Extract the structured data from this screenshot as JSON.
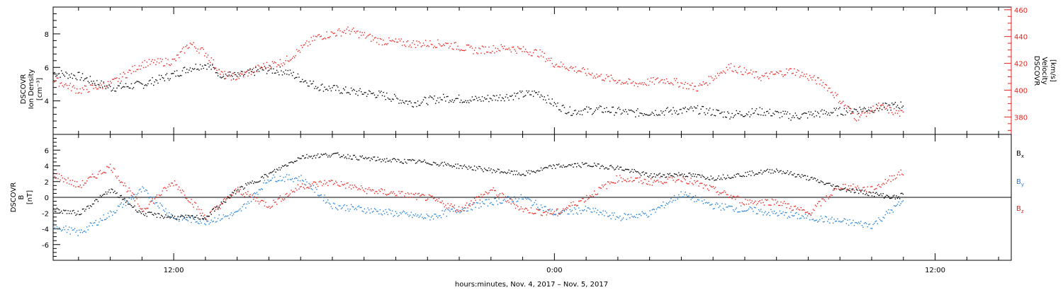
{
  "footer": {
    "time_label": "hours:minutes, Nov.  4, 2017 – Nov.  5, 2017"
  },
  "time_ticks": [
    "12:00",
    "0:00",
    "12:00"
  ],
  "chart_data": [
    {
      "type": "scatter",
      "panel": "top",
      "x_unit": "hours since Nov. 4, 2017 00:00",
      "x_range": [
        8.2,
        38.4
      ],
      "left_axis": {
        "label_line1": "DSCOVR",
        "label_line2": "Ion Density",
        "label_line3": "[cm⁻³]",
        "ylim": [
          2.0,
          9.6
        ],
        "ticks": [
          4,
          6,
          8
        ],
        "color": "#000000"
      },
      "right_axis": {
        "label_line1": "DSCOVR",
        "label_line2": "Velocity",
        "label_line3": "[km/s]",
        "ylim": [
          367,
          462
        ],
        "ticks": [
          380,
          400,
          420,
          440,
          460
        ],
        "color": "#e8231d"
      },
      "series": [
        {
          "name": "Ion Density",
          "axis": "left",
          "color": "#000000",
          "x": [
            8.2,
            9.0,
            10.0,
            11.0,
            12.0,
            12.5,
            13.0,
            13.5,
            14.0,
            14.8,
            15.5,
            16.5,
            17.5,
            18.5,
            19.5,
            20.5,
            21.5,
            22.5,
            23.5,
            24.0,
            24.5,
            25.5,
            26.5,
            27.5,
            28.5,
            29.5,
            30.5,
            31.5,
            32.5,
            33.5,
            34.2,
            35.0
          ],
          "y": [
            5.7,
            5.5,
            4.8,
            5.0,
            5.6,
            6.0,
            6.2,
            5.6,
            5.5,
            5.9,
            5.8,
            4.9,
            4.6,
            4.4,
            3.9,
            4.2,
            4.1,
            4.3,
            4.5,
            3.8,
            3.4,
            3.5,
            3.3,
            3.4,
            3.5,
            3.2,
            3.4,
            3.1,
            3.3,
            3.5,
            3.6,
            3.8
          ]
        },
        {
          "name": "Velocity",
          "axis": "right",
          "color": "#e8231d",
          "x": [
            8.2,
            9.0,
            10.0,
            11.0,
            12.0,
            12.5,
            13.0,
            13.5,
            14.0,
            14.8,
            15.5,
            16.5,
            17.5,
            18.5,
            19.5,
            20.5,
            21.5,
            22.5,
            23.5,
            24.0,
            24.5,
            25.5,
            26.5,
            27.5,
            28.5,
            29.5,
            30.5,
            31.5,
            32.5,
            33.5,
            34.2,
            35.0
          ],
          "y": [
            408,
            400,
            405,
            420,
            422,
            435,
            428,
            412,
            410,
            418,
            422,
            440,
            445,
            437,
            435,
            435,
            430,
            432,
            428,
            420,
            417,
            410,
            405,
            408,
            402,
            418,
            410,
            415,
            405,
            380,
            388,
            382
          ]
        }
      ]
    },
    {
      "type": "scatter",
      "panel": "bottom",
      "x_unit": "hours since Nov. 4, 2017 00:00",
      "x_range": [
        8.2,
        38.4
      ],
      "left_axis": {
        "label_line1": "DSCOVR",
        "label_line2": "B",
        "label_line3": "[nT]",
        "ylim": [
          -8.0,
          8.0
        ],
        "ticks": [
          -6,
          -4,
          -2,
          0,
          2,
          4,
          6
        ]
      },
      "zero_line": true,
      "series": [
        {
          "name": "B",
          "subscript": "x",
          "color": "#000000",
          "x": [
            8.2,
            9.0,
            10.0,
            11.0,
            12.0,
            13.0,
            14.0,
            15.0,
            16.0,
            17.0,
            18.0,
            19.0,
            20.0,
            21.0,
            22.0,
            23.0,
            24.0,
            25.0,
            26.0,
            27.0,
            28.0,
            29.0,
            30.0,
            31.0,
            32.0,
            33.0,
            34.0,
            34.8,
            35.0
          ],
          "y": [
            -1.5,
            -2.0,
            1.0,
            -2.0,
            -2.5,
            -2.5,
            1.0,
            3.0,
            5.2,
            5.5,
            5.0,
            4.7,
            4.5,
            4.0,
            3.5,
            3.0,
            4.0,
            4.2,
            3.8,
            2.8,
            3.0,
            2.5,
            3.0,
            3.5,
            2.5,
            1.2,
            0.5,
            0.0,
            0.5
          ]
        },
        {
          "name": "B",
          "subscript": "y",
          "color": "#1f7fd6",
          "x": [
            8.2,
            9.0,
            10.0,
            11.0,
            12.0,
            13.0,
            14.0,
            15.0,
            16.0,
            17.0,
            18.0,
            19.0,
            20.0,
            21.0,
            22.0,
            23.0,
            24.0,
            25.0,
            26.0,
            27.0,
            28.0,
            29.0,
            30.0,
            31.0,
            32.0,
            33.0,
            34.0,
            34.8,
            35.0
          ],
          "y": [
            -3.5,
            -4.5,
            -2.0,
            1.0,
            -2.5,
            -3.0,
            -2.0,
            2.5,
            2.5,
            -1.0,
            -1.5,
            -2.0,
            -2.5,
            -1.5,
            -0.5,
            0.0,
            -2.0,
            -1.5,
            -2.5,
            -2.0,
            0.5,
            -1.0,
            -1.5,
            -2.0,
            -2.5,
            -3.0,
            -3.5,
            -1.0,
            -0.5
          ]
        },
        {
          "name": "B",
          "subscript": "z",
          "color": "#e8231d",
          "x": [
            8.2,
            9.0,
            10.0,
            11.0,
            12.0,
            13.0,
            14.0,
            15.0,
            16.0,
            17.0,
            18.0,
            19.0,
            20.0,
            21.0,
            22.0,
            23.0,
            24.0,
            25.0,
            26.0,
            27.0,
            28.0,
            29.0,
            30.0,
            31.0,
            32.0,
            33.0,
            34.0,
            34.8,
            35.0
          ],
          "y": [
            3.0,
            1.5,
            4.0,
            -1.5,
            2.0,
            -2.5,
            1.0,
            -1.0,
            1.5,
            2.0,
            1.0,
            0.5,
            0.0,
            -1.5,
            1.0,
            -1.5,
            -2.0,
            0.0,
            2.5,
            2.0,
            2.5,
            1.0,
            -0.5,
            -0.5,
            -2.0,
            1.5,
            1.0,
            3.0,
            3.2
          ]
        }
      ]
    }
  ]
}
